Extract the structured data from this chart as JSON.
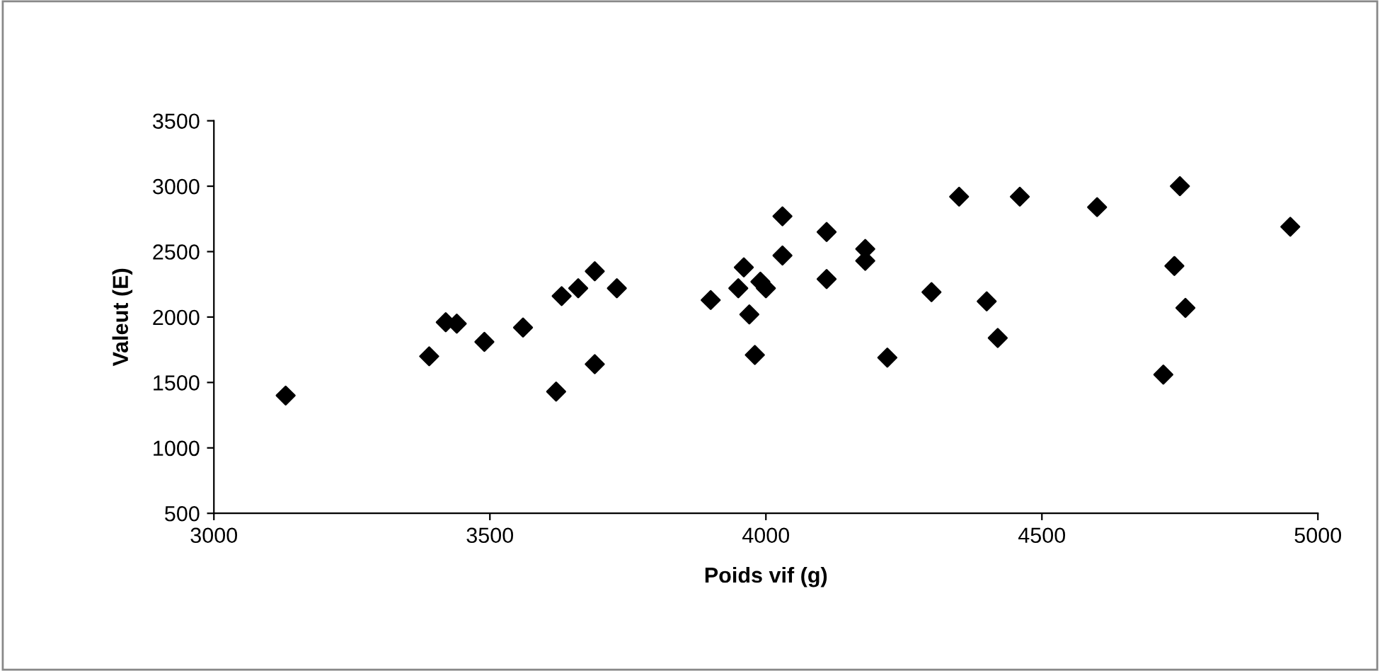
{
  "chart_data": {
    "type": "scatter",
    "xlabel": "Poids vif (g)",
    "ylabel": "Valeut (E)",
    "x": [
      3130,
      3390,
      3420,
      3440,
      3490,
      3560,
      3620,
      3630,
      3660,
      3690,
      3690,
      3730,
      3900,
      3950,
      3960,
      3970,
      3980,
      3990,
      4000,
      4030,
      4030,
      4110,
      4110,
      4180,
      4180,
      4220,
      4300,
      4350,
      4400,
      4420,
      4460,
      4600,
      4720,
      4740,
      4750,
      4760,
      4950
    ],
    "values": [
      1400,
      1700,
      1960,
      1950,
      1810,
      1920,
      1430,
      2160,
      2220,
      1640,
      2350,
      2220,
      2130,
      2220,
      2380,
      2020,
      1710,
      2270,
      2220,
      2770,
      2470,
      2650,
      2290,
      2430,
      2520,
      1690,
      2190,
      2920,
      2120,
      1840,
      2920,
      2840,
      1560,
      2390,
      3000,
      2070,
      2690
    ],
    "color": "#000000",
    "marker": "diamond",
    "grid": false,
    "legend": false,
    "xlim": [
      3000,
      5000
    ],
    "xticks": [
      3000,
      3500,
      4000,
      4500,
      5000
    ],
    "ylim": [
      500,
      3500
    ],
    "yticks": [
      500,
      1000,
      1500,
      2000,
      2500,
      3000,
      3500
    ]
  }
}
